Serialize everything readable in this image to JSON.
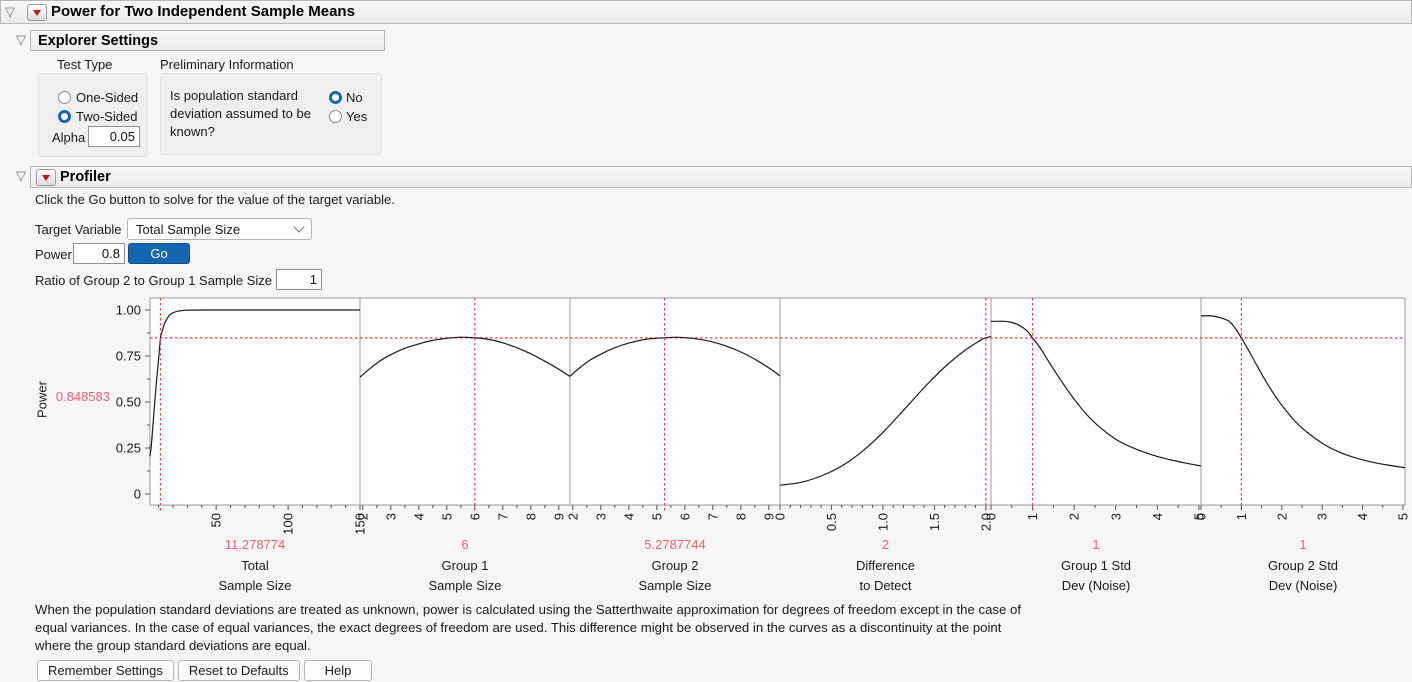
{
  "window": {
    "title": "Power for Two Independent Sample Means"
  },
  "explorer_settings": {
    "title": "Explorer Settings",
    "test_type": {
      "label": "Test Type",
      "options": [
        {
          "label": "One-Sided",
          "selected": false
        },
        {
          "label": "Two-Sided",
          "selected": true
        }
      ],
      "alpha_label": "Alpha",
      "alpha_value": "0.05"
    },
    "preliminary": {
      "label": "Preliminary Information",
      "question": "Is population standard deviation assumed to be known?",
      "options": [
        {
          "label": "No",
          "selected": true
        },
        {
          "label": "Yes",
          "selected": false
        }
      ]
    }
  },
  "profiler": {
    "title": "Profiler",
    "instruction": "Click the Go button to solve for the value of the target variable.",
    "target_variable_label": "Target Variable",
    "target_variable_value": "Total Sample Size",
    "power_label": "Power",
    "power_value": "0.8",
    "go_label": "Go",
    "ratio_label": "Ratio of Group 2 to Group 1 Sample Size",
    "ratio_value": "1",
    "footnote_lines": [
      "When the population standard deviations are treated as unknown, power is calculated using the Satterthwaite approximation for degrees of freedom except in the case of",
      "equal variances. In the case of equal variances, the exact degrees of freedom are used. This difference might be observed in the curves as a discontinuity at the point",
      "where the group standard deviations are equal."
    ],
    "buttons": [
      "Remember Settings",
      "Reset to Defaults",
      "Help"
    ]
  },
  "chart_data": {
    "type": "line",
    "ylabel": "Power",
    "ylim": [
      0,
      1.06
    ],
    "grid": false,
    "yticks": [
      {
        "v": 1.0,
        "label": "1.00"
      },
      {
        "v": 0.75,
        "label": "0.75"
      },
      {
        "v": 0.5,
        "label": "0.50"
      },
      {
        "v": 0.25,
        "label": "0.25"
      },
      {
        "v": 0,
        "label": "0"
      }
    ],
    "y_minor_ticks": [
      0.125,
      0.375,
      0.625,
      0.875
    ],
    "crosshair_power": 0.848583,
    "crosshair_power_label": "0.848583",
    "panels": [
      {
        "id": "total-sample-size",
        "name_lines": [
          "Total",
          "Sample Size"
        ],
        "value_label": "11.278774",
        "crosshair_x": 11.278774,
        "xmin": 4,
        "xmax": 150,
        "ticks": [
          50,
          100,
          150
        ],
        "tick_labels": [
          "50",
          "100",
          "150"
        ],
        "minor_step": 10,
        "curve": [
          [
            4,
            0.205
          ],
          [
            5,
            0.27
          ],
          [
            6,
            0.37
          ],
          [
            7,
            0.47
          ],
          [
            8,
            0.565
          ],
          [
            9,
            0.655
          ],
          [
            10,
            0.735
          ],
          [
            11.278774,
            0.8486
          ],
          [
            12.5,
            0.885
          ],
          [
            14,
            0.925
          ],
          [
            16,
            0.955
          ],
          [
            18,
            0.975
          ],
          [
            20,
            0.985
          ],
          [
            23,
            0.993
          ],
          [
            26,
            0.997
          ],
          [
            30,
            0.999
          ],
          [
            40,
            1.0
          ],
          [
            70,
            1.0
          ],
          [
            110,
            1.0
          ],
          [
            150,
            1.0
          ]
        ]
      },
      {
        "id": "group-1-sample-size",
        "name_lines": [
          "Group 1",
          "Sample Size"
        ],
        "value_label": "6",
        "crosshair_x": 6,
        "xmin": 1.9,
        "xmax": 9.4,
        "ticks": [
          2,
          3,
          4,
          5,
          6,
          7,
          8,
          9
        ],
        "tick_labels": [
          "2",
          "3",
          "4",
          "5",
          "6",
          "7",
          "8",
          "9"
        ],
        "minor_step": 0.5,
        "curve": [
          [
            1.9,
            0.635
          ],
          [
            2.2,
            0.675
          ],
          [
            2.6,
            0.722
          ],
          [
            3,
            0.757
          ],
          [
            3.5,
            0.792
          ],
          [
            4,
            0.816
          ],
          [
            4.5,
            0.835
          ],
          [
            5,
            0.846
          ],
          [
            5.5,
            0.852
          ],
          [
            6,
            0.8486
          ],
          [
            6.5,
            0.84
          ],
          [
            7,
            0.822
          ],
          [
            7.5,
            0.795
          ],
          [
            8,
            0.762
          ],
          [
            8.5,
            0.722
          ],
          [
            9,
            0.678
          ],
          [
            9.4,
            0.638
          ]
        ]
      },
      {
        "id": "group-2-sample-size",
        "name_lines": [
          "Group 2",
          "Sample Size"
        ],
        "value_label": "5.2787744",
        "crosshair_x": 5.2787744,
        "xmin": 1.9,
        "xmax": 9.4,
        "ticks": [
          2,
          3,
          4,
          5,
          6,
          7,
          8,
          9
        ],
        "tick_labels": [
          "2",
          "3",
          "4",
          "5",
          "6",
          "7",
          "8",
          "9"
        ],
        "minor_step": 0.5,
        "curve": [
          [
            1.9,
            0.64
          ],
          [
            2.2,
            0.68
          ],
          [
            2.6,
            0.726
          ],
          [
            3,
            0.76
          ],
          [
            3.5,
            0.795
          ],
          [
            4,
            0.82
          ],
          [
            4.5,
            0.838
          ],
          [
            5,
            0.847
          ],
          [
            5.2787744,
            0.8486
          ],
          [
            5.7,
            0.852
          ],
          [
            6.2,
            0.847
          ],
          [
            6.8,
            0.833
          ],
          [
            7.4,
            0.808
          ],
          [
            8,
            0.772
          ],
          [
            8.6,
            0.724
          ],
          [
            9.1,
            0.675
          ],
          [
            9.4,
            0.642
          ]
        ]
      },
      {
        "id": "difference-to-detect",
        "name_lines": [
          "Difference",
          "to Detect"
        ],
        "value_label": "2",
        "crosshair_x": 2,
        "xmin": 0,
        "xmax": 2.05,
        "ticks": [
          0,
          0.5,
          1.0,
          1.5,
          2.0
        ],
        "tick_labels": [
          "0",
          "0.5",
          "1.0",
          "1.5",
          "2.0"
        ],
        "minor_step": 0.1,
        "curve": [
          [
            0,
            0.048
          ],
          [
            0.2,
            0.063
          ],
          [
            0.4,
            0.098
          ],
          [
            0.6,
            0.152
          ],
          [
            0.8,
            0.232
          ],
          [
            1.0,
            0.335
          ],
          [
            1.2,
            0.455
          ],
          [
            1.4,
            0.578
          ],
          [
            1.6,
            0.69
          ],
          [
            1.8,
            0.782
          ],
          [
            1.95,
            0.836
          ],
          [
            2.0,
            0.8486
          ],
          [
            2.05,
            0.856
          ]
        ]
      },
      {
        "id": "group-1-std-dev",
        "name_lines": [
          "Group 1 Std",
          "Dev (Noise)"
        ],
        "value_label": "1",
        "crosshair_x": 1,
        "xmin": 0,
        "xmax": 5.05,
        "ticks": [
          0,
          1,
          2,
          3,
          4,
          5
        ],
        "tick_labels": [
          "0",
          "1",
          "2",
          "3",
          "4",
          "5"
        ],
        "minor_step": 0.5,
        "curve": [
          [
            0,
            0.938
          ],
          [
            0.25,
            0.939
          ],
          [
            0.45,
            0.935
          ],
          [
            0.65,
            0.92
          ],
          [
            0.85,
            0.89
          ],
          [
            1.0,
            0.8486
          ],
          [
            1.2,
            0.788
          ],
          [
            1.4,
            0.715
          ],
          [
            1.6,
            0.645
          ],
          [
            1.8,
            0.578
          ],
          [
            2.0,
            0.515
          ],
          [
            2.3,
            0.432
          ],
          [
            2.6,
            0.366
          ],
          [
            3.0,
            0.298
          ],
          [
            3.4,
            0.252
          ],
          [
            3.8,
            0.218
          ],
          [
            4.2,
            0.192
          ],
          [
            4.6,
            0.172
          ],
          [
            5.05,
            0.152
          ]
        ]
      },
      {
        "id": "group-2-std-dev",
        "name_lines": [
          "Group 2 Std",
          "Dev (Noise)"
        ],
        "value_label": "1",
        "crosshair_x": 1,
        "xmin": 0,
        "xmax": 5.05,
        "ticks": [
          0,
          1,
          2,
          3,
          4,
          5
        ],
        "tick_labels": [
          "0",
          "1",
          "2",
          "3",
          "4",
          "5"
        ],
        "minor_step": 0.5,
        "curve": [
          [
            0,
            0.968
          ],
          [
            0.25,
            0.968
          ],
          [
            0.5,
            0.957
          ],
          [
            0.7,
            0.938
          ],
          [
            0.85,
            0.9
          ],
          [
            1.0,
            0.8486
          ],
          [
            1.2,
            0.772
          ],
          [
            1.4,
            0.692
          ],
          [
            1.6,
            0.615
          ],
          [
            1.8,
            0.545
          ],
          [
            2.0,
            0.482
          ],
          [
            2.3,
            0.402
          ],
          [
            2.6,
            0.34
          ],
          [
            3.0,
            0.276
          ],
          [
            3.4,
            0.23
          ],
          [
            3.8,
            0.198
          ],
          [
            4.2,
            0.175
          ],
          [
            4.6,
            0.158
          ],
          [
            5.05,
            0.143
          ]
        ]
      }
    ]
  },
  "colors": {
    "accent_blue": "#1566b0",
    "crosshair_red": "#e8394f",
    "value_red": "#ee5f75",
    "curve_black": "#1a1a1a",
    "frame_gray": "#9b9b9b"
  }
}
